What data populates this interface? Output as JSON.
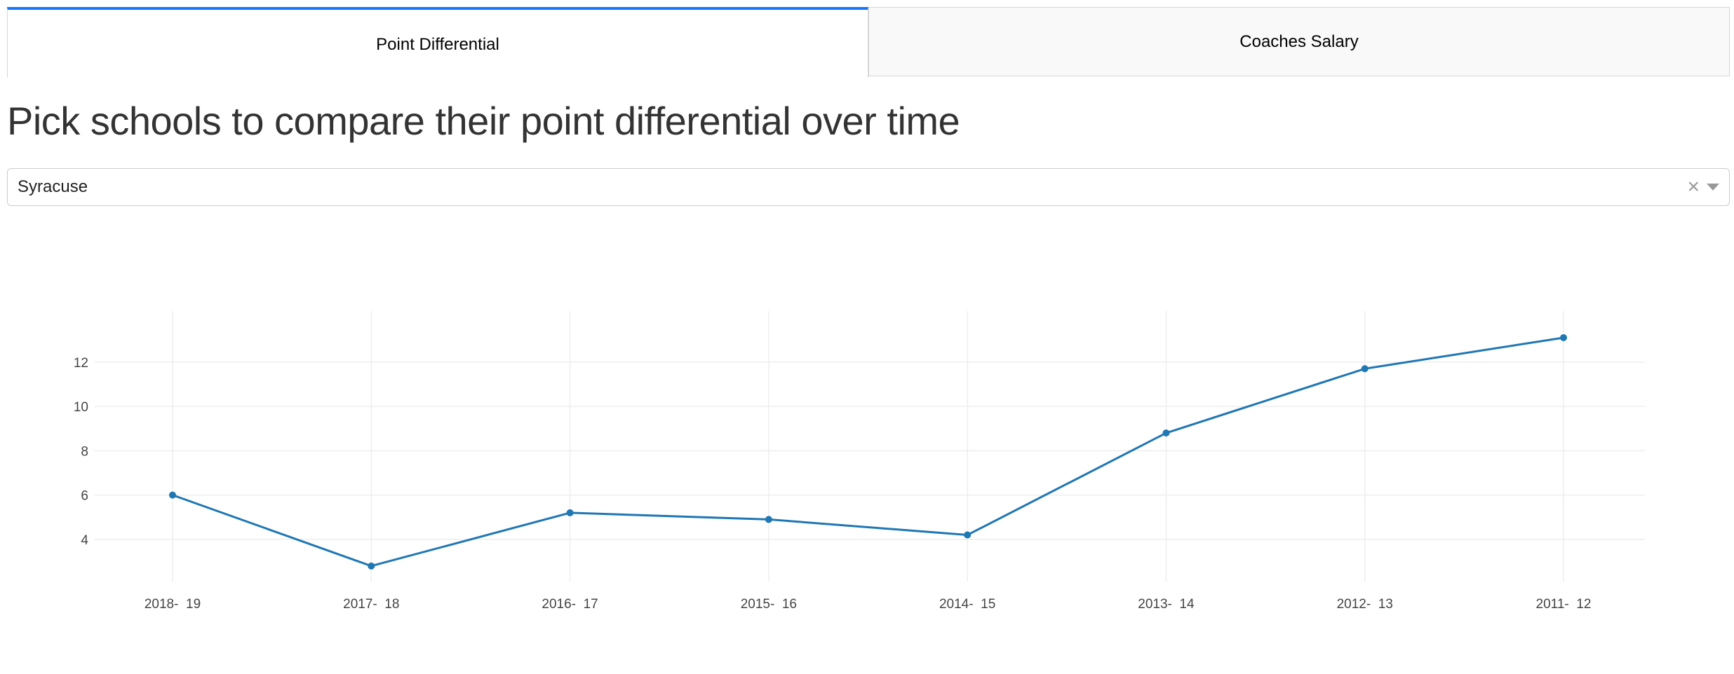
{
  "tabs": [
    {
      "label": "Point Differential",
      "active": true
    },
    {
      "label": "Coaches Salary",
      "active": false
    }
  ],
  "heading": "Pick schools to compare their point differential over time",
  "dropdown": {
    "selected": "Syracuse",
    "clear_icon": "close-icon",
    "caret_icon": "chevron-down-icon"
  },
  "colors": {
    "tab_accent": "#1975FA",
    "line": "#1f77b4",
    "grid": "#eeeeee"
  },
  "chart_data": {
    "type": "line",
    "title": "",
    "xlabel": "",
    "ylabel": "",
    "categories": [
      "2018-  19",
      "2017-  18",
      "2016-  17",
      "2015-  16",
      "2014-  15",
      "2013-  14",
      "2012-  13",
      "2011-  12"
    ],
    "series": [
      {
        "values": [
          6.0,
          2.8,
          5.2,
          4.9,
          4.2,
          8.8,
          11.7,
          13.1
        ]
      }
    ],
    "yticks": [
      4,
      6,
      8,
      10,
      12
    ],
    "ylim": [
      2.1,
      14.3
    ],
    "grid": true,
    "legend": "none"
  }
}
